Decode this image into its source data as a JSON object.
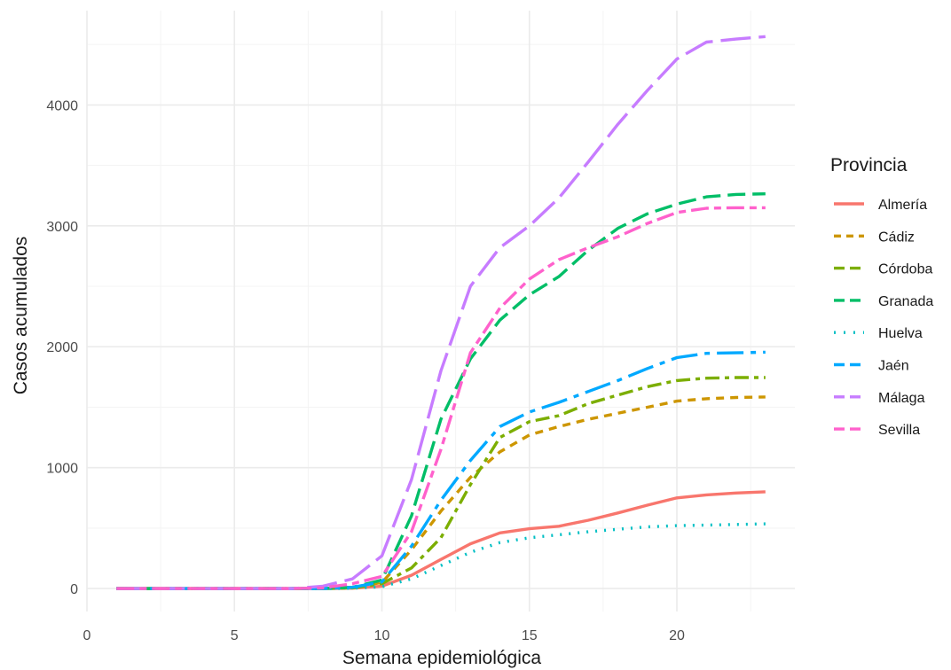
{
  "chart_data": {
    "type": "line",
    "xlabel": "Semana epidemiológica",
    "ylabel": "Casos acumulados",
    "legend_title": "Provincia",
    "legend_position": "right",
    "grid": true,
    "xlim": [
      0,
      24
    ],
    "ylim": [
      -190,
      4780
    ],
    "xticks": [
      0,
      5,
      10,
      15,
      20
    ],
    "yticks": [
      0,
      1000,
      2000,
      3000,
      4000
    ],
    "x": [
      1,
      2,
      3,
      4,
      5,
      6,
      7,
      8,
      9,
      10,
      11,
      12,
      13,
      14,
      15,
      16,
      17,
      18,
      19,
      20,
      21,
      22,
      23
    ],
    "series": [
      {
        "name": "Almería",
        "color": "#F8766D",
        "dash": "solid",
        "values": [
          0,
          0,
          0,
          0,
          0,
          0,
          0,
          0,
          3,
          20,
          110,
          240,
          370,
          460,
          495,
          515,
          565,
          625,
          690,
          750,
          775,
          790,
          800
        ]
      },
      {
        "name": "Cádiz",
        "color": "#CD9600",
        "dash": "short",
        "values": [
          0,
          0,
          0,
          0,
          0,
          0,
          0,
          0,
          10,
          50,
          320,
          640,
          920,
          1130,
          1270,
          1340,
          1400,
          1450,
          1500,
          1550,
          1570,
          1580,
          1585
        ]
      },
      {
        "name": "Córdoba",
        "color": "#7CAE00",
        "dash": "dashdot",
        "values": [
          0,
          0,
          0,
          0,
          0,
          0,
          0,
          0,
          5,
          40,
          170,
          420,
          860,
          1250,
          1380,
          1430,
          1530,
          1600,
          1670,
          1720,
          1740,
          1745,
          1745
        ]
      },
      {
        "name": "Granada",
        "color": "#00BE67",
        "dash": "dash",
        "values": [
          0,
          0,
          0,
          0,
          0,
          0,
          0,
          0,
          10,
          70,
          600,
          1400,
          1900,
          2220,
          2430,
          2580,
          2800,
          2980,
          3100,
          3180,
          3240,
          3260,
          3265
        ]
      },
      {
        "name": "Huelva",
        "color": "#00BFC4",
        "dash": "dotted",
        "values": [
          0,
          0,
          0,
          0,
          0,
          0,
          0,
          0,
          2,
          15,
          80,
          190,
          300,
          380,
          420,
          445,
          470,
          490,
          510,
          520,
          525,
          530,
          535
        ]
      },
      {
        "name": "Jaén",
        "color": "#00A9FF",
        "dash": "longdash",
        "values": [
          0,
          0,
          0,
          0,
          0,
          0,
          0,
          0,
          10,
          55,
          350,
          730,
          1060,
          1340,
          1460,
          1540,
          1630,
          1720,
          1820,
          1910,
          1945,
          1950,
          1955
        ]
      },
      {
        "name": "Málaga",
        "color": "#C77CFF",
        "dash": "longdash2",
        "values": [
          0,
          0,
          0,
          0,
          0,
          0,
          0,
          20,
          80,
          270,
          900,
          1800,
          2500,
          2820,
          3000,
          3230,
          3530,
          3840,
          4120,
          4380,
          4520,
          4545,
          4565
        ]
      },
      {
        "name": "Sevilla",
        "color": "#FF61CC",
        "dash": "twodash",
        "values": [
          0,
          0,
          0,
          0,
          0,
          0,
          0,
          5,
          40,
          100,
          470,
          1150,
          1950,
          2320,
          2560,
          2720,
          2820,
          2910,
          3020,
          3110,
          3145,
          3150,
          3150
        ]
      }
    ]
  }
}
